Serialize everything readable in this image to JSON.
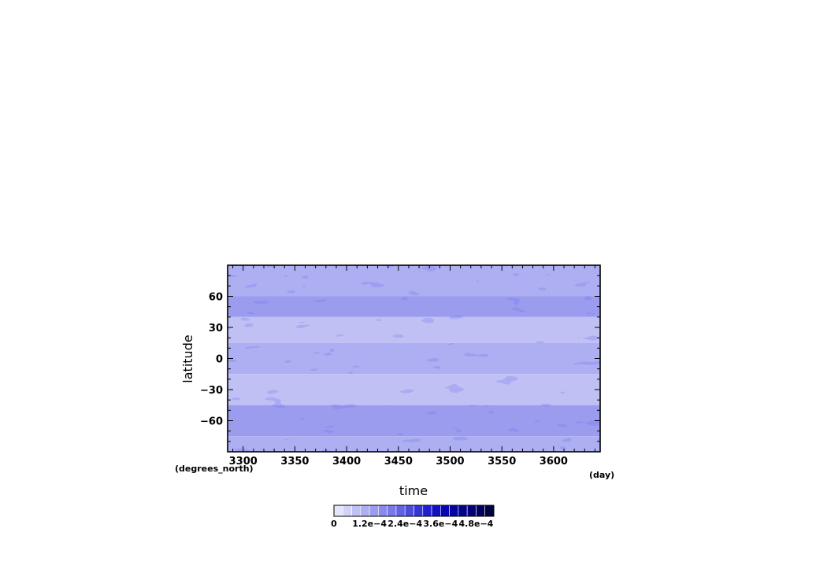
{
  "chart_data": {
    "type": "heatmap",
    "title": "",
    "xlabel": "time",
    "ylabel": "latitude",
    "x_units": "(day)",
    "y_units": "(degrees_north)",
    "xlim": [
      3285,
      3645
    ],
    "ylim": [
      -90,
      90
    ],
    "x_ticks": [
      3300,
      3350,
      3400,
      3450,
      3500,
      3550,
      3600
    ],
    "y_ticks": [
      60,
      30,
      0,
      -30,
      -60
    ],
    "y_tick_labels": [
      "60",
      "30",
      "0",
      "−30",
      "−60"
    ],
    "colorbar": {
      "min": 0,
      "max": 0.00054,
      "levels": 18,
      "tick_values": [
        0,
        0.00012,
        0.00024,
        0.00036,
        0.00048
      ],
      "tick_labels": [
        "0",
        "1.2e−4",
        "2.4e−4",
        "3.6e−4",
        "4.8e−4"
      ],
      "colors": [
        "#e4e4fa",
        "#d2d2f8",
        "#c0c0f5",
        "#aeaef2",
        "#9c9cef",
        "#8a8aec",
        "#7878e8",
        "#6262e2",
        "#4c4cdc",
        "#3535d6",
        "#1f1fd0",
        "#1010c4",
        "#0606b4",
        "#0404a0",
        "#03038a",
        "#020274",
        "#02025c",
        "#010140"
      ]
    },
    "latitude_band_means": [
      {
        "lat_range": [
          60,
          90
        ],
        "value": 9e-05
      },
      {
        "lat_range": [
          40,
          60
        ],
        "value": 0.00012
      },
      {
        "lat_range": [
          15,
          40
        ],
        "value": 6e-05
      },
      {
        "lat_range": [
          -15,
          15
        ],
        "value": 9e-05
      },
      {
        "lat_range": [
          -45,
          -15
        ],
        "value": 7e-05
      },
      {
        "lat_range": [
          -75,
          -45
        ],
        "value": 0.00013
      },
      {
        "lat_range": [
          -90,
          -75
        ],
        "value": 9e-05
      }
    ]
  }
}
